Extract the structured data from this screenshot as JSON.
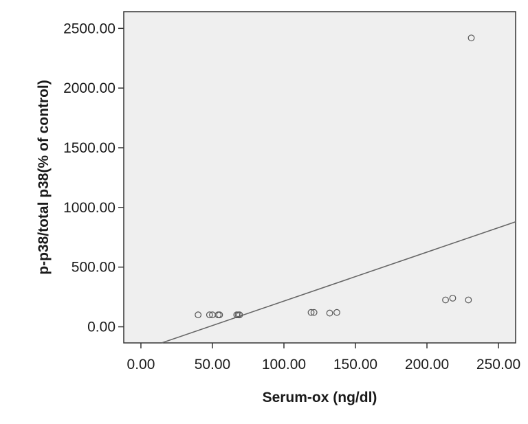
{
  "chart_data": {
    "type": "scatter",
    "title": "",
    "xlabel": "Serum-ox (ng/dl)",
    "ylabel": "p-p38/total p38(% of control)",
    "xlim": [
      -12,
      262
    ],
    "ylim": [
      -135,
      2640
    ],
    "x_ticks": [
      0,
      50,
      100,
      150,
      200,
      250
    ],
    "x_tick_labels": [
      "0.00",
      "50.00",
      "100.00",
      "150.00",
      "200.00",
      "250.00"
    ],
    "y_ticks": [
      0,
      500,
      1000,
      1500,
      2000,
      2500
    ],
    "y_tick_labels": [
      "0.00",
      "500.00",
      "1000.00",
      "1500.00",
      "2000.00",
      "2500.00"
    ],
    "grid": false,
    "plot_background": "#efefef",
    "marker_color": "#555555",
    "line_color": "#666666",
    "points": [
      {
        "x": 40,
        "y": 100
      },
      {
        "x": 48,
        "y": 100
      },
      {
        "x": 50,
        "y": 100
      },
      {
        "x": 54,
        "y": 100
      },
      {
        "x": 55,
        "y": 100
      },
      {
        "x": 67,
        "y": 100
      },
      {
        "x": 68,
        "y": 100
      },
      {
        "x": 69,
        "y": 100
      },
      {
        "x": 119,
        "y": 120
      },
      {
        "x": 121,
        "y": 120
      },
      {
        "x": 132,
        "y": 115
      },
      {
        "x": 137,
        "y": 120
      },
      {
        "x": 213,
        "y": 225
      },
      {
        "x": 218,
        "y": 240
      },
      {
        "x": 229,
        "y": 225
      },
      {
        "x": 231,
        "y": 2420
      }
    ],
    "fit_line": {
      "x": [
        14.5,
        262
      ],
      "y": [
        -135,
        880
      ]
    }
  }
}
